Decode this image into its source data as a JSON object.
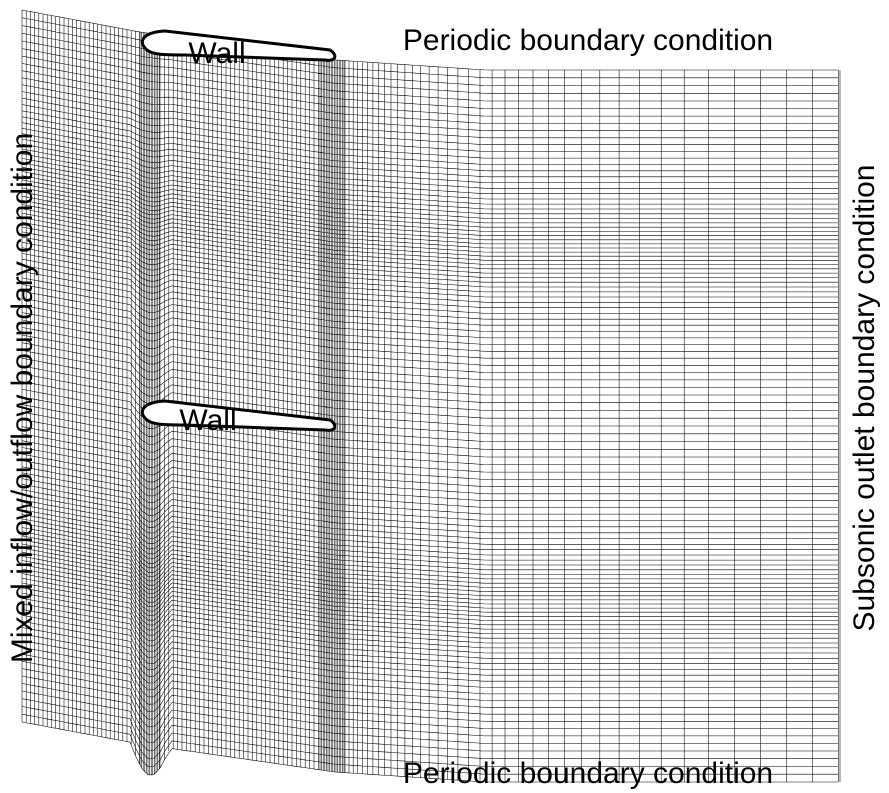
{
  "labels": {
    "top": "Periodic boundary condition",
    "bottom": "Periodic boundary condition",
    "left": "Mixed inflow/outflow boundary condition",
    "right": "Subsonic outlet boundary condition",
    "walls": [
      "Wall",
      "Wall"
    ]
  }
}
